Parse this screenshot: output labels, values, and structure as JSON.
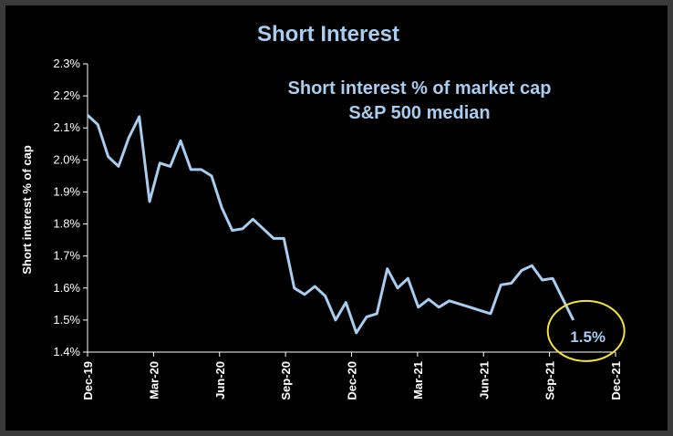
{
  "chart_data": {
    "type": "line",
    "title": "Short Interest",
    "subtitle_line1": "Short interest % of market cap",
    "subtitle_line2": "S&P 500 median",
    "ylabel": "Short interest % of cap",
    "xlabel": "",
    "ylim": [
      1.4,
      2.3
    ],
    "yticks": [
      "1.4%",
      "1.5%",
      "1.6%",
      "1.7%",
      "1.8%",
      "1.9%",
      "2.0%",
      "2.1%",
      "2.2%",
      "2.3%"
    ],
    "xticks": [
      "Dec-19",
      "Mar-20",
      "Jun-20",
      "Sep-20",
      "Dec-20",
      "Mar-21",
      "Jun-21",
      "Sep-21",
      "Dec-21"
    ],
    "grid": false,
    "line_color": "#a9cdef",
    "title_color": "#a9cdef",
    "highlight_color": "#f2e33a",
    "annotation": "1.5%",
    "series": [
      {
        "values": [
          2.14,
          2.11,
          2.01,
          1.98,
          2.07,
          2.135,
          1.87,
          1.99,
          1.98,
          2.06,
          1.97,
          1.97,
          1.95,
          1.85,
          1.78,
          1.785,
          1.815,
          1.785,
          1.755,
          1.755,
          1.6,
          1.58,
          1.605,
          1.575,
          1.5,
          1.555,
          1.46,
          1.51,
          1.52,
          1.66,
          1.6,
          1.63,
          1.54,
          1.565,
          1.54,
          1.56,
          1.55,
          1.54,
          1.53,
          1.52,
          1.61,
          1.615,
          1.655,
          1.67,
          1.625,
          1.63,
          1.565,
          1.5
        ]
      }
    ]
  }
}
